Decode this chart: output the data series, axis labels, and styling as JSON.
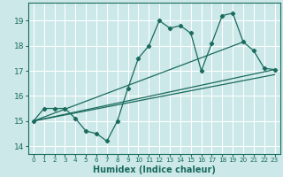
{
  "xlabel": "Humidex (Indice chaleur)",
  "bg_color": "#cce8e8",
  "grid_color": "#ffffff",
  "line_color": "#1a6b5e",
  "xlim": [
    -0.5,
    23.5
  ],
  "ylim": [
    13.7,
    19.7
  ],
  "yticks": [
    14,
    15,
    16,
    17,
    18,
    19
  ],
  "xticks": [
    0,
    1,
    2,
    3,
    4,
    5,
    6,
    7,
    8,
    9,
    10,
    11,
    12,
    13,
    14,
    15,
    16,
    17,
    18,
    19,
    20,
    21,
    22,
    23
  ],
  "line1_x": [
    0,
    1,
    2,
    3,
    4,
    5,
    6,
    7,
    8,
    9,
    10,
    11,
    12,
    13,
    14,
    15,
    16,
    17,
    18,
    19,
    20,
    21,
    22,
    23
  ],
  "line1_y": [
    15.0,
    15.5,
    15.5,
    15.5,
    15.1,
    14.6,
    14.5,
    14.2,
    15.0,
    16.3,
    17.5,
    18.0,
    19.0,
    18.7,
    18.8,
    18.5,
    17.0,
    18.1,
    19.2,
    19.3,
    18.15,
    17.8,
    17.1,
    17.05
  ],
  "line2_x": [
    0,
    23
  ],
  "line2_y": [
    15.0,
    17.05
  ],
  "line3_x": [
    0,
    20
  ],
  "line3_y": [
    15.0,
    18.15
  ],
  "line4_x": [
    0,
    23
  ],
  "line4_y": [
    15.0,
    16.85
  ]
}
